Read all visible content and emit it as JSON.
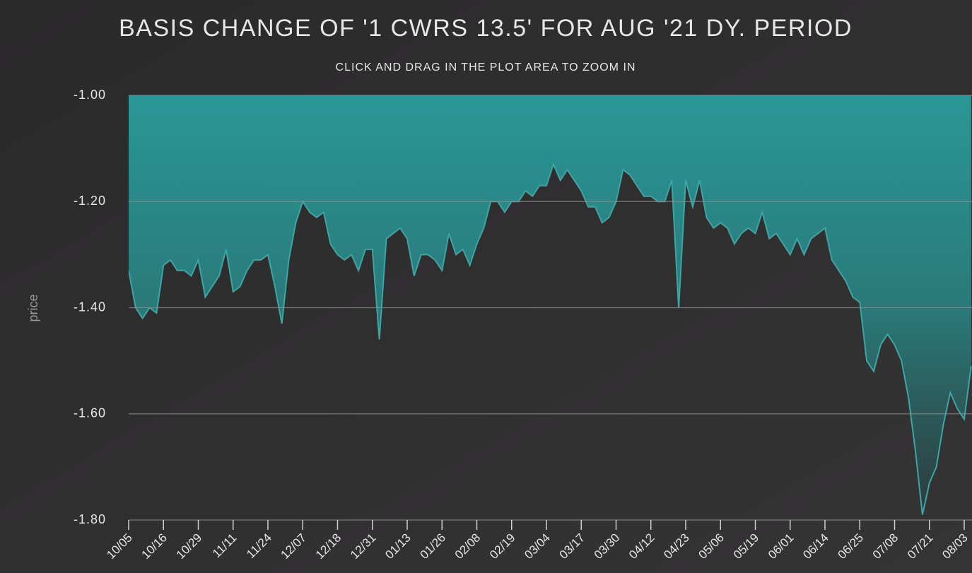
{
  "chart_data": {
    "type": "area",
    "title": "BASIS CHANGE OF '1 CWRS 13.5' FOR AUG '21 DY. PERIOD",
    "subtitle": "CLICK AND DRAG IN THE PLOT AREA TO ZOOM IN",
    "y_label": "price",
    "color": "#3aa6a5",
    "categories": [
      "10/05",
      null,
      null,
      null,
      null,
      "10/16",
      null,
      null,
      null,
      null,
      "10/29",
      null,
      null,
      null,
      null,
      "11/11",
      null,
      null,
      null,
      null,
      "11/24",
      null,
      null,
      null,
      null,
      "12/07",
      null,
      null,
      null,
      null,
      "12/18",
      null,
      null,
      null,
      null,
      "12/31",
      null,
      null,
      null,
      null,
      "01/13",
      null,
      null,
      null,
      null,
      "01/26",
      null,
      null,
      null,
      null,
      "02/08",
      null,
      null,
      null,
      null,
      "02/19",
      null,
      null,
      null,
      null,
      "03/04",
      null,
      null,
      null,
      null,
      "03/17",
      null,
      null,
      null,
      null,
      "03/30",
      null,
      null,
      null,
      null,
      "04/12",
      null,
      null,
      null,
      null,
      "04/23",
      null,
      null,
      null,
      null,
      "05/06",
      null,
      null,
      null,
      null,
      "05/19",
      null,
      null,
      null,
      null,
      "06/01",
      null,
      null,
      null,
      null,
      "06/14",
      null,
      null,
      null,
      null,
      "06/25",
      null,
      null,
      null,
      null,
      "07/08",
      null,
      null,
      null,
      null,
      "07/21",
      null,
      null,
      null,
      null,
      "08/03",
      null
    ],
    "values": [
      -1.33,
      -1.4,
      -1.42,
      -1.4,
      -1.41,
      -1.32,
      -1.31,
      -1.33,
      -1.33,
      -1.34,
      -1.31,
      -1.38,
      -1.36,
      -1.34,
      -1.29,
      -1.37,
      -1.36,
      -1.33,
      -1.31,
      -1.31,
      -1.3,
      -1.36,
      -1.43,
      -1.31,
      -1.24,
      -1.2,
      -1.22,
      -1.23,
      -1.22,
      -1.28,
      -1.3,
      -1.31,
      -1.3,
      -1.33,
      -1.29,
      -1.29,
      -1.46,
      -1.27,
      -1.26,
      -1.25,
      -1.27,
      -1.34,
      -1.3,
      -1.3,
      -1.31,
      -1.33,
      -1.26,
      -1.3,
      -1.29,
      -1.32,
      -1.28,
      -1.25,
      -1.2,
      -1.2,
      -1.22,
      -1.2,
      -1.2,
      -1.18,
      -1.19,
      -1.17,
      -1.17,
      -1.13,
      -1.16,
      -1.14,
      -1.16,
      -1.18,
      -1.21,
      -1.21,
      -1.24,
      -1.23,
      -1.2,
      -1.14,
      -1.15,
      -1.17,
      -1.19,
      -1.19,
      -1.2,
      -1.2,
      -1.16,
      -1.4,
      -1.16,
      -1.21,
      -1.16,
      -1.23,
      -1.25,
      -1.24,
      -1.25,
      -1.28,
      -1.26,
      -1.25,
      -1.26,
      -1.22,
      -1.27,
      -1.26,
      -1.28,
      -1.3,
      -1.27,
      -1.3,
      -1.27,
      -1.26,
      -1.25,
      -1.31,
      -1.33,
      -1.35,
      -1.38,
      -1.39,
      -1.5,
      -1.52,
      -1.47,
      -1.45,
      -1.47,
      -1.5,
      -1.57,
      -1.67,
      -1.79,
      -1.73,
      -1.7,
      -1.62,
      -1.56,
      -1.59,
      -1.61,
      -1.51
    ],
    "ylim": [
      -1.8,
      -1.0
    ],
    "yticks": [
      {
        "value": -1.8,
        "label": "-1.80"
      },
      {
        "value": -1.6,
        "label": "-1.60"
      },
      {
        "value": -1.4,
        "label": "-1.40"
      },
      {
        "value": -1.2,
        "label": "-1.20"
      },
      {
        "value": -1.0,
        "label": "-1.00"
      }
    ],
    "grid": true
  }
}
